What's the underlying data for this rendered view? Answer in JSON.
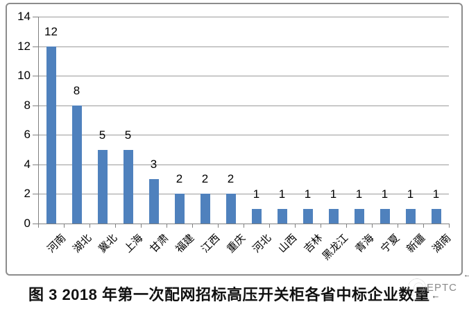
{
  "caption": "图 3 2018 年第一次配网招标高压开关柜各省中标企业数量",
  "watermark": {
    "text": "EPTC"
  },
  "marks": {
    "frame_return": "←",
    "caption_return": "←"
  },
  "colors": {
    "bar": "#4F81BD",
    "gridline": "#9B9B9B",
    "axis": "#808080",
    "label": "#000000",
    "frame_border": "#8C8C8C",
    "watermark_text": "#8A8A8A"
  },
  "chart_data": {
    "type": "bar",
    "title": "",
    "xlabel": "",
    "ylabel": "",
    "categories": [
      "河南",
      "湖北",
      "冀北",
      "上海",
      "甘肃",
      "福建",
      "江西",
      "重庆",
      "河北",
      "山西",
      "吉林",
      "黑龙江",
      "青海",
      "宁夏",
      "新疆",
      "湖南"
    ],
    "values": [
      12,
      8,
      5,
      5,
      3,
      2,
      2,
      2,
      1,
      1,
      1,
      1,
      1,
      1,
      1,
      1
    ],
    "ylim": [
      0,
      14
    ],
    "ytick_step": 2,
    "grid": true,
    "legend": false,
    "data_labels": true
  }
}
